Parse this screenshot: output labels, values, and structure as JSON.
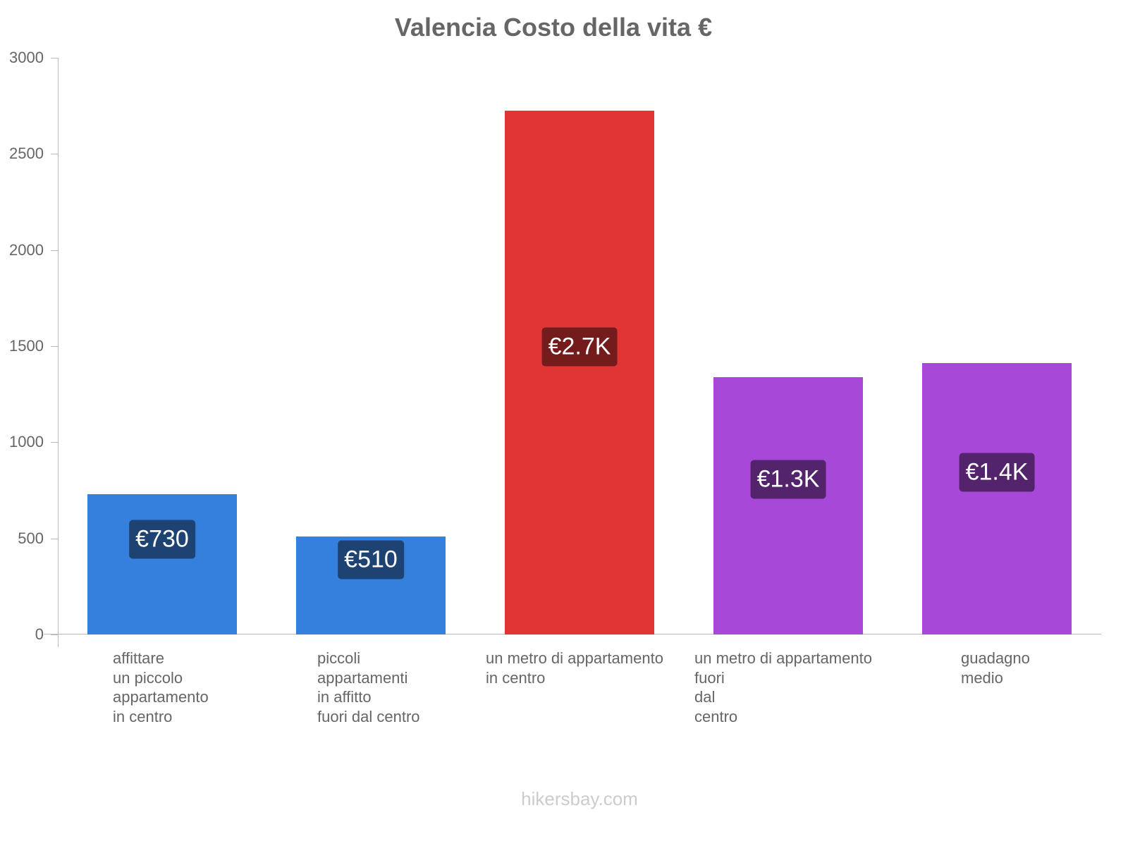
{
  "title": "Valencia Costo della vita €",
  "watermark": "hikersbay.com",
  "yaxis": {
    "ticks": [
      "3000",
      "2500",
      "2000",
      "1500",
      "1000",
      "500",
      "0"
    ]
  },
  "bars": [
    {
      "label": "affittare\nun piccolo\nappartamento\nin centro",
      "value": 730,
      "badge": "€730",
      "color": "#3580dc",
      "badge_color": "#1d4373"
    },
    {
      "label": "piccoli\nappartamenti\nin affitto\nfuori dal centro",
      "value": 510,
      "badge": "€510",
      "color": "#3580dc",
      "badge_color": "#1d4373"
    },
    {
      "label": "un metro di appartamento\nin centro",
      "value": 2724,
      "badge": "€2.7K",
      "color": "#e03535",
      "badge_color": "#741b1b"
    },
    {
      "label": "un metro di appartamento\nfuori\ndal\ncentro",
      "value": 1338,
      "badge": "€1.3K",
      "color": "#a848d8",
      "badge_color": "#53246c"
    },
    {
      "label": "guadagno\nmedio",
      "value": 1412,
      "badge": "€1.4K",
      "color": "#a848d8",
      "badge_color": "#53246c"
    }
  ],
  "chart_data": {
    "type": "bar",
    "title": "Valencia Costo della vita €",
    "categories": [
      "affittare un piccolo appartamento in centro",
      "piccoli appartamenti in affitto fuori dal centro",
      "un metro di appartamento in centro",
      "un metro di appartamento fuori dal centro",
      "guadagno medio"
    ],
    "values": [
      730,
      510,
      2724,
      1338,
      1412
    ],
    "data_labels": [
      "€730",
      "€510",
      "€2.7K",
      "€1.3K",
      "€1.4K"
    ],
    "xlabel": "",
    "ylabel": "",
    "ylim": [
      0,
      3000
    ],
    "yticks": [
      0,
      500,
      1000,
      1500,
      2000,
      2500,
      3000
    ],
    "grid": false,
    "legend": null
  }
}
